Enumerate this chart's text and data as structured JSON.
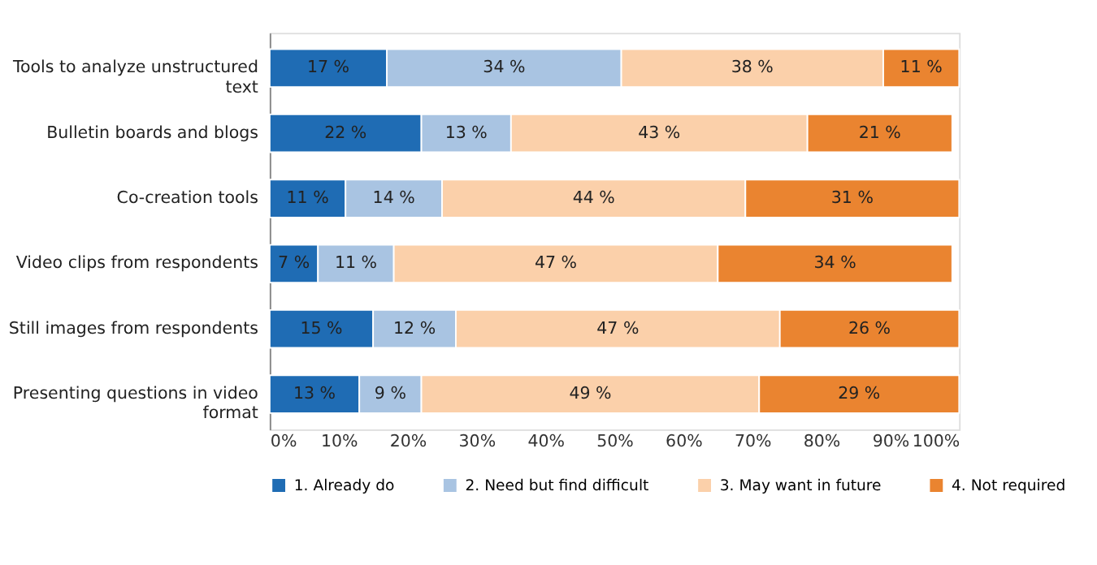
{
  "chart_data": {
    "type": "bar",
    "orientation": "horizontal",
    "stacked": true,
    "categories": [
      "Tools to analyze unstructured text",
      "Bulletin boards and blogs",
      "Co-creation tools",
      "Video clips from respondents",
      "Still images from respondents",
      "Presenting questions in video format"
    ],
    "series": [
      {
        "name": "1. Already do",
        "color": "#1f6cb4",
        "values": [
          17,
          22,
          11,
          7,
          15,
          13
        ],
        "value_labels": [
          "17 %",
          "22 %",
          "11 %",
          "7 %",
          "15 %",
          "13 %"
        ]
      },
      {
        "name": "2. Need but find difficult",
        "color": "#a9c4e2",
        "values": [
          34,
          13,
          14,
          11,
          12,
          9
        ],
        "value_labels": [
          "34 %",
          "13 %",
          "14 %",
          "11 %",
          "12 %",
          "9 %"
        ]
      },
      {
        "name": "3. May want in future",
        "color": "#fbd0aa",
        "values": [
          38,
          43,
          44,
          47,
          47,
          49
        ],
        "value_labels": [
          "38 %",
          "43 %",
          "44 %",
          "47 %",
          "47 %",
          "49 %"
        ]
      },
      {
        "name": "4. Not required",
        "color": "#ea8430",
        "values": [
          11,
          21,
          31,
          34,
          26,
          29
        ],
        "value_labels": [
          "11 %",
          "21 %",
          "31 %",
          "34 %",
          "26 %",
          "29 %"
        ]
      }
    ],
    "xlim": [
      0,
      100
    ],
    "xticks": [
      {
        "value": 0,
        "label": "0%"
      },
      {
        "value": 10,
        "label": "10%"
      },
      {
        "value": 20,
        "label": "20%"
      },
      {
        "value": 30,
        "label": "30%"
      },
      {
        "value": 40,
        "label": "40%"
      },
      {
        "value": 50,
        "label": "50%"
      },
      {
        "value": 60,
        "label": "60%"
      },
      {
        "value": 70,
        "label": "70%"
      },
      {
        "value": 80,
        "label": "80%"
      },
      {
        "value": 90,
        "label": "90%"
      },
      {
        "value": 100,
        "label": "100%"
      }
    ],
    "grid": false,
    "legend": "bottom"
  }
}
